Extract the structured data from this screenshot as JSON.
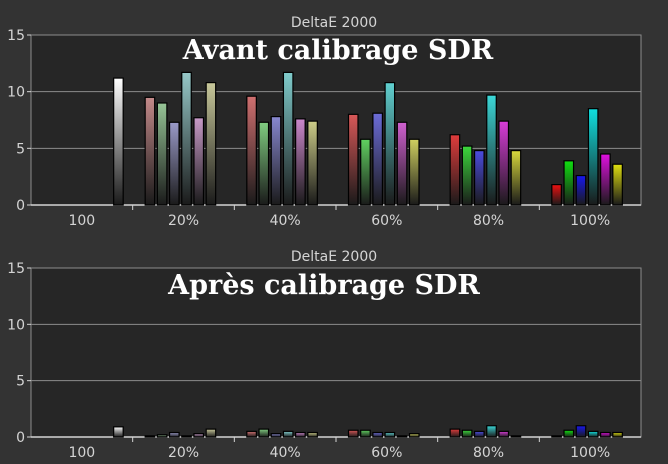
{
  "chart_data": [
    {
      "type": "bar",
      "title": "DeltaE 2000",
      "annotation": "Avant calibrage SDR",
      "ylim": [
        0,
        15
      ],
      "yticks": [
        0,
        5,
        10,
        15
      ],
      "grid": true,
      "categories": [
        "100",
        "20%",
        "40%",
        "60%",
        "80%",
        "100%"
      ],
      "groups": [
        {
          "category": "100",
          "bars": [
            {
              "color": "#ffffff",
              "value": 11.2
            }
          ]
        },
        {
          "category": "20%",
          "bars": [
            {
              "color": "#c48a8a",
              "value": 9.5
            },
            {
              "color": "#96c496",
              "value": 9.0
            },
            {
              "color": "#9a9ac8",
              "value": 7.3
            },
            {
              "color": "#96c8c8",
              "value": 11.7
            },
            {
              "color": "#c89ac8",
              "value": 7.7
            },
            {
              "color": "#c8c89a",
              "value": 10.8
            }
          ]
        },
        {
          "category": "40%",
          "bars": [
            {
              "color": "#d07070",
              "value": 9.6
            },
            {
              "color": "#80cc80",
              "value": 7.3
            },
            {
              "color": "#8888d0",
              "value": 7.8
            },
            {
              "color": "#80cccc",
              "value": 11.7
            },
            {
              "color": "#cc88cc",
              "value": 7.6
            },
            {
              "color": "#cccc88",
              "value": 7.4
            }
          ]
        },
        {
          "category": "60%",
          "bars": [
            {
              "color": "#d85858",
              "value": 8.0
            },
            {
              "color": "#60d060",
              "value": 5.8
            },
            {
              "color": "#6c6cd8",
              "value": 8.1
            },
            {
              "color": "#60d0d0",
              "value": 10.8
            },
            {
              "color": "#d060d0",
              "value": 7.3
            },
            {
              "color": "#d0d060",
              "value": 5.8
            }
          ]
        },
        {
          "category": "80%",
          "bars": [
            {
              "color": "#e03c3c",
              "value": 6.2
            },
            {
              "color": "#3cd83c",
              "value": 5.2
            },
            {
              "color": "#4c4ce0",
              "value": 4.8
            },
            {
              "color": "#3cd8d8",
              "value": 9.7
            },
            {
              "color": "#d83cd8",
              "value": 7.4
            },
            {
              "color": "#d8d83c",
              "value": 4.8
            }
          ]
        },
        {
          "category": "100%",
          "bars": [
            {
              "color": "#ee1010",
              "value": 1.8
            },
            {
              "color": "#10e010",
              "value": 3.9
            },
            {
              "color": "#1818ee",
              "value": 2.6
            },
            {
              "color": "#10e0e0",
              "value": 8.5
            },
            {
              "color": "#e010e0",
              "value": 4.5
            },
            {
              "color": "#e0e010",
              "value": 3.6
            }
          ]
        }
      ]
    },
    {
      "type": "bar",
      "title": "DeltaE 2000",
      "annotation": "Après calibrage SDR",
      "ylim": [
        0,
        15
      ],
      "yticks": [
        0,
        5,
        10,
        15
      ],
      "grid": true,
      "categories": [
        "100",
        "20%",
        "40%",
        "60%",
        "80%",
        "100%"
      ],
      "groups": [
        {
          "category": "100",
          "bars": [
            {
              "color": "#ffffff",
              "value": 0.9
            }
          ]
        },
        {
          "category": "20%",
          "bars": [
            {
              "color": "#c48a8a",
              "value": 0.1
            },
            {
              "color": "#96c496",
              "value": 0.2
            },
            {
              "color": "#9a9ac8",
              "value": 0.4
            },
            {
              "color": "#96c8c8",
              "value": 0.1
            },
            {
              "color": "#c89ac8",
              "value": 0.3
            },
            {
              "color": "#c8c89a",
              "value": 0.7
            }
          ]
        },
        {
          "category": "40%",
          "bars": [
            {
              "color": "#d07070",
              "value": 0.5
            },
            {
              "color": "#80cc80",
              "value": 0.7
            },
            {
              "color": "#8888d0",
              "value": 0.3
            },
            {
              "color": "#80cccc",
              "value": 0.5
            },
            {
              "color": "#cc88cc",
              "value": 0.4
            },
            {
              "color": "#cccc88",
              "value": 0.4
            }
          ]
        },
        {
          "category": "60%",
          "bars": [
            {
              "color": "#d85858",
              "value": 0.6
            },
            {
              "color": "#60d060",
              "value": 0.6
            },
            {
              "color": "#6c6cd8",
              "value": 0.4
            },
            {
              "color": "#60d0d0",
              "value": 0.4
            },
            {
              "color": "#d060d0",
              "value": 0.1
            },
            {
              "color": "#d0d060",
              "value": 0.3
            }
          ]
        },
        {
          "category": "80%",
          "bars": [
            {
              "color": "#e03c3c",
              "value": 0.7
            },
            {
              "color": "#3cd83c",
              "value": 0.6
            },
            {
              "color": "#4c4ce0",
              "value": 0.5
            },
            {
              "color": "#3cd8d8",
              "value": 1.0
            },
            {
              "color": "#d83cd8",
              "value": 0.5
            },
            {
              "color": "#d8d83c",
              "value": 0.1
            }
          ]
        },
        {
          "category": "100%",
          "bars": [
            {
              "color": "#ee1010",
              "value": 0.1
            },
            {
              "color": "#10e010",
              "value": 0.6
            },
            {
              "color": "#1818ee",
              "value": 1.0
            },
            {
              "color": "#10e0e0",
              "value": 0.5
            },
            {
              "color": "#e010e0",
              "value": 0.4
            },
            {
              "color": "#e0e010",
              "value": 0.4
            }
          ]
        }
      ]
    }
  ],
  "colors": {
    "background": "#333333",
    "plot_area": "#262626",
    "grid": "#8c8c8c",
    "text": "#d4d4d4",
    "annotation": "#ffffff"
  }
}
